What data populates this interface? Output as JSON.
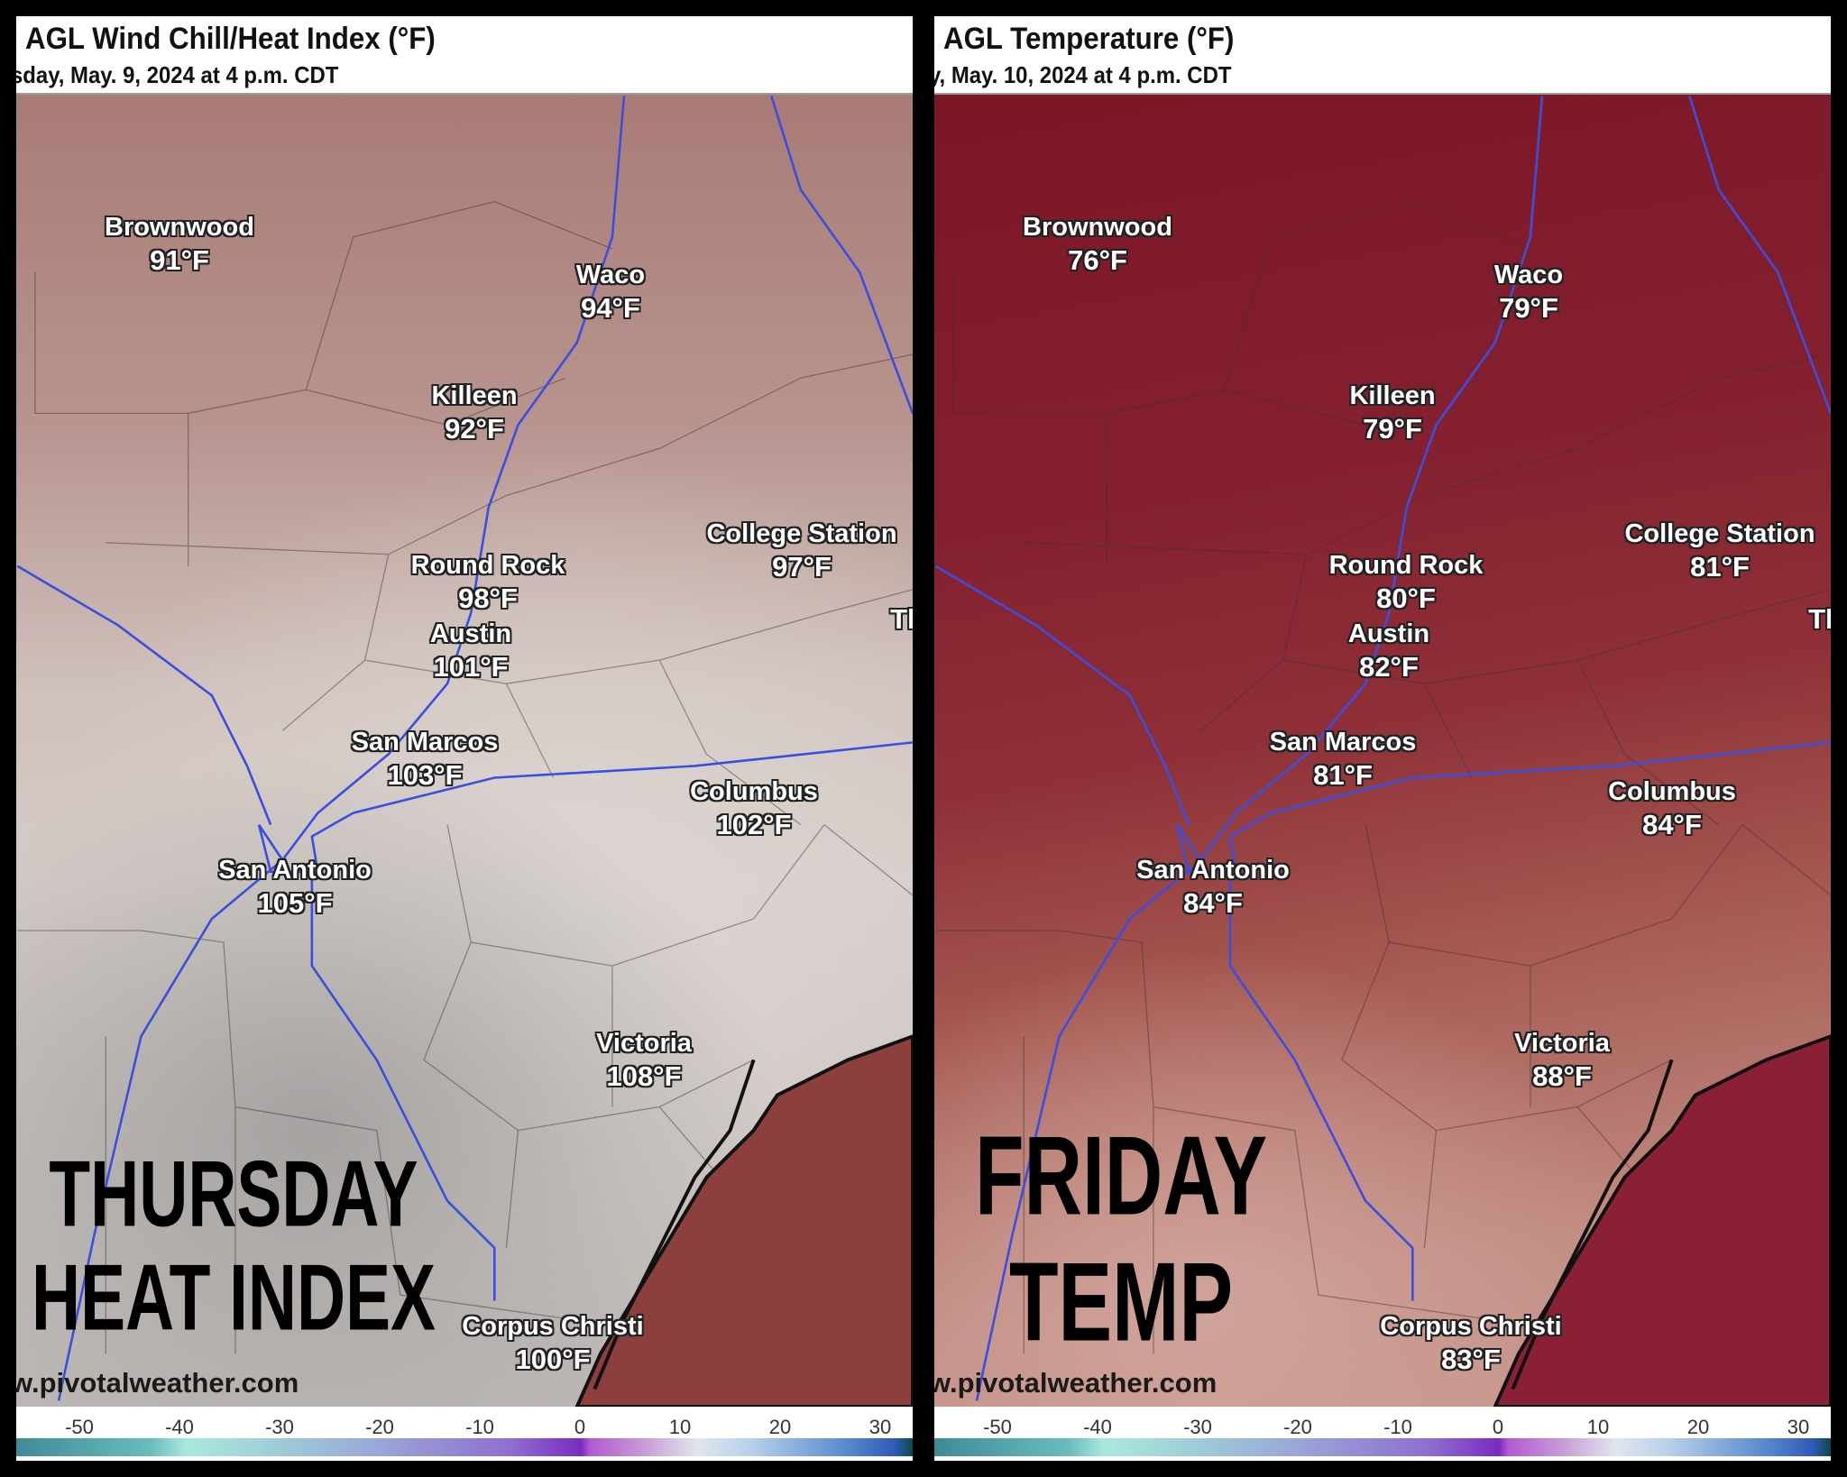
{
  "panels": [
    {
      "title": "AGL Wind Chill/Heat Index (°F)",
      "subtitle": "sday, May. 9, 2024 at 4 p.m. CDT",
      "overlay": [
        "THURSDAY",
        "HEAT INDEX"
      ],
      "watermark": "w.pivotalweather.com",
      "edge_label": "Th",
      "cities": [
        {
          "name": "Brownwood",
          "value": "91°F"
        },
        {
          "name": "Waco",
          "value": "94°F"
        },
        {
          "name": "Killeen",
          "value": "92°F"
        },
        {
          "name": "College Station",
          "value": "97°F"
        },
        {
          "name": "Round Rock",
          "value": "98°F"
        },
        {
          "name": "Austin",
          "value": "101°F"
        },
        {
          "name": "San Marcos",
          "value": "103°F"
        },
        {
          "name": "Columbus",
          "value": "102°F"
        },
        {
          "name": "San Antonio",
          "value": "105°F"
        },
        {
          "name": "Victoria",
          "value": "108°F"
        },
        {
          "name": "Corpus Christi",
          "value": "100°F"
        }
      ],
      "colorbar_ticks": [
        "-50",
        "-40",
        "-30",
        "-20",
        "-10",
        "0",
        "10",
        "20",
        "30"
      ]
    },
    {
      "title": "AGL Temperature (°F)",
      "subtitle": "y, May. 10, 2024 at 4 p.m. CDT",
      "overlay": [
        "FRIDAY",
        "TEMP"
      ],
      "watermark": "w.pivotalweather.com",
      "edge_label": "Th",
      "cities": [
        {
          "name": "Brownwood",
          "value": "76°F"
        },
        {
          "name": "Waco",
          "value": "79°F"
        },
        {
          "name": "Killeen",
          "value": "79°F"
        },
        {
          "name": "College Station",
          "value": "81°F"
        },
        {
          "name": "Round Rock",
          "value": "80°F"
        },
        {
          "name": "Austin",
          "value": "82°F"
        },
        {
          "name": "San Marcos",
          "value": "81°F"
        },
        {
          "name": "Columbus",
          "value": "84°F"
        },
        {
          "name": "San Antonio",
          "value": "84°F"
        },
        {
          "name": "Victoria",
          "value": "88°F"
        },
        {
          "name": "Corpus Christi",
          "value": "83°F"
        }
      ],
      "colorbar_ticks": [
        "-50",
        "-40",
        "-30",
        "-20",
        "-10",
        "0",
        "10",
        "20",
        "30"
      ]
    }
  ],
  "colors": {
    "highway": "#3a4fe0",
    "ocean_left": "#8c3f3c",
    "ocean_right": "#8a2036"
  }
}
